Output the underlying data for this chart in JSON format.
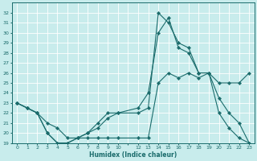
{
  "xlabel": "Humidex (Indice chaleur)",
  "bg_color": "#c8ecec",
  "grid_color": "#ffffff",
  "line_color": "#1a6b6b",
  "xlim": [
    -0.5,
    23.5
  ],
  "ylim": [
    19,
    33
  ],
  "yticks": [
    19,
    20,
    21,
    22,
    23,
    24,
    25,
    26,
    27,
    28,
    29,
    30,
    31,
    32
  ],
  "xtick_vals": [
    0,
    1,
    2,
    3,
    4,
    5,
    6,
    7,
    8,
    9,
    10,
    12,
    13,
    14,
    15,
    16,
    17,
    18,
    19,
    20,
    21,
    22,
    23
  ],
  "line1_x": [
    0,
    1,
    2,
    3,
    4,
    5,
    6,
    7,
    8,
    9,
    10,
    12,
    13,
    14,
    15,
    16,
    17,
    18,
    19,
    20,
    21,
    22,
    23
  ],
  "line1_y": [
    23,
    22.5,
    22,
    20,
    19,
    19,
    19.5,
    20,
    20.5,
    21.5,
    22,
    22,
    22.5,
    32,
    31,
    29,
    28.5,
    26,
    26,
    25,
    25,
    25,
    26
  ],
  "line2_x": [
    0,
    1,
    2,
    3,
    4,
    5,
    6,
    7,
    8,
    9,
    10,
    12,
    13,
    14,
    15,
    16,
    17,
    18,
    19,
    20,
    21,
    22,
    23
  ],
  "line2_y": [
    23,
    22.5,
    22,
    20,
    19,
    19,
    19.5,
    20,
    21,
    22,
    22,
    22.5,
    24,
    30,
    31.5,
    28.5,
    28,
    26,
    26,
    22,
    20.5,
    19.5,
    19
  ],
  "line3_x": [
    0,
    1,
    2,
    3,
    4,
    5,
    6,
    7,
    8,
    9,
    10,
    12,
    13,
    14,
    15,
    16,
    17,
    18,
    19,
    20,
    21,
    22,
    23
  ],
  "line3_y": [
    23,
    22.5,
    22,
    21,
    20.5,
    19.5,
    19.5,
    19.5,
    19.5,
    19.5,
    19.5,
    19.5,
    19.5,
    25,
    26,
    25.5,
    26,
    25.5,
    26,
    23.5,
    22,
    21,
    19
  ]
}
